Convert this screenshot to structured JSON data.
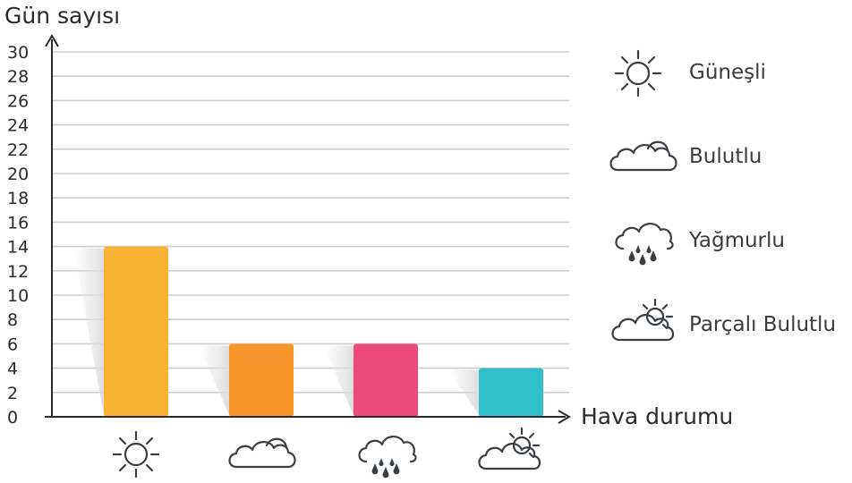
{
  "chart_data": {
    "type": "bar",
    "ylabel": "Gün sayısı",
    "xlabel": "Hava durumu",
    "ylim": [
      0,
      30
    ],
    "yticks": [
      0,
      2,
      4,
      6,
      8,
      10,
      12,
      14,
      16,
      18,
      20,
      22,
      24,
      26,
      28,
      30
    ],
    "grid": true,
    "legend_position": "right",
    "categories": [
      {
        "name": "Güneşli",
        "icon": "sun-icon",
        "value": 14,
        "color": "#F9B233"
      },
      {
        "name": "Bulutlu",
        "icon": "cloud-icon",
        "value": 6,
        "color": "#F7962B"
      },
      {
        "name": "Yağmurlu",
        "icon": "rain-cloud-icon",
        "value": 6,
        "color": "#EC4A78"
      },
      {
        "name": "Parçalı Bulutlu",
        "icon": "partly-cloudy-icon",
        "value": 4,
        "color": "#2FC0CC"
      }
    ]
  }
}
